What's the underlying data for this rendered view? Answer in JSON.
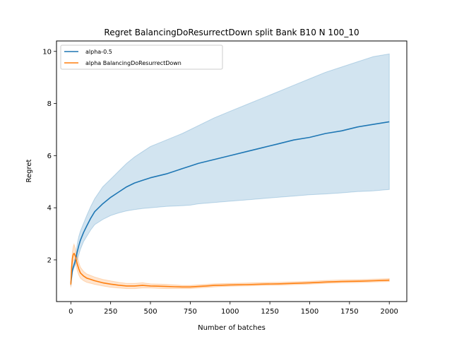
{
  "chart_data": {
    "type": "line",
    "title": "Regret BalancingDoResurrectDown split Bank B10 N 100_10",
    "xlabel": "Number of batches",
    "ylabel": "Regret",
    "xlim": [
      -90,
      2110
    ],
    "ylim": [
      0.4,
      10.4
    ],
    "xticks": [
      0,
      250,
      500,
      750,
      1000,
      1250,
      1500,
      1750,
      2000
    ],
    "yticks": [
      2,
      4,
      6,
      8,
      10
    ],
    "grid": false,
    "legend_position": "top-left",
    "series": [
      {
        "name": "alpha-0.5",
        "color": "#1f77b4",
        "band_color": "#1f77b4",
        "x": [
          0,
          10,
          20,
          30,
          40,
          50,
          60,
          80,
          100,
          125,
          150,
          200,
          250,
          300,
          350,
          400,
          450,
          500,
          600,
          700,
          750,
          800,
          900,
          1000,
          1100,
          1200,
          1300,
          1400,
          1500,
          1600,
          1700,
          1800,
          1900,
          2000
        ],
        "y": [
          1.1,
          1.6,
          1.8,
          2.0,
          2.3,
          2.55,
          2.75,
          3.05,
          3.3,
          3.6,
          3.85,
          4.15,
          4.4,
          4.6,
          4.8,
          4.95,
          5.05,
          5.15,
          5.3,
          5.5,
          5.6,
          5.7,
          5.85,
          6.0,
          6.15,
          6.3,
          6.45,
          6.6,
          6.7,
          6.85,
          6.95,
          7.1,
          7.2,
          7.3
        ],
        "lower": [
          1.0,
          1.5,
          1.7,
          1.85,
          2.0,
          2.2,
          2.4,
          2.7,
          2.9,
          3.15,
          3.35,
          3.55,
          3.7,
          3.8,
          3.88,
          3.93,
          3.97,
          4.0,
          4.05,
          4.08,
          4.1,
          4.15,
          4.2,
          4.25,
          4.3,
          4.35,
          4.4,
          4.45,
          4.5,
          4.53,
          4.57,
          4.62,
          4.65,
          4.7
        ],
        "upper": [
          1.2,
          1.7,
          1.9,
          2.15,
          2.6,
          2.9,
          3.1,
          3.4,
          3.7,
          4.05,
          4.35,
          4.8,
          5.1,
          5.4,
          5.7,
          5.95,
          6.15,
          6.35,
          6.6,
          6.85,
          7.0,
          7.15,
          7.45,
          7.7,
          7.95,
          8.2,
          8.45,
          8.7,
          8.95,
          9.2,
          9.4,
          9.6,
          9.8,
          9.9
        ]
      },
      {
        "name": "alpha BalancingDoResurrectDown",
        "color": "#ff7f0e",
        "band_color": "#ff7f0e",
        "x": [
          0,
          5,
          10,
          15,
          20,
          25,
          30,
          40,
          50,
          60,
          80,
          100,
          125,
          150,
          200,
          250,
          300,
          350,
          400,
          450,
          500,
          550,
          600,
          650,
          700,
          750,
          800,
          850,
          900,
          950,
          1000,
          1100,
          1200,
          1300,
          1400,
          1500,
          1600,
          1700,
          1800,
          1900,
          2000
        ],
        "y": [
          1.05,
          1.7,
          2.05,
          2.2,
          2.25,
          2.2,
          2.1,
          1.85,
          1.65,
          1.5,
          1.38,
          1.3,
          1.25,
          1.2,
          1.12,
          1.07,
          1.03,
          1.0,
          1.0,
          1.02,
          1.0,
          0.99,
          0.98,
          0.97,
          0.96,
          0.96,
          0.98,
          1.0,
          1.02,
          1.03,
          1.04,
          1.05,
          1.07,
          1.08,
          1.1,
          1.12,
          1.15,
          1.17,
          1.18,
          1.2,
          1.22
        ],
        "lower": [
          0.95,
          1.5,
          1.8,
          1.95,
          2.0,
          1.95,
          1.85,
          1.6,
          1.42,
          1.3,
          1.2,
          1.14,
          1.1,
          1.06,
          1.0,
          0.95,
          0.92,
          0.9,
          0.9,
          0.92,
          0.92,
          0.91,
          0.9,
          0.9,
          0.9,
          0.9,
          0.92,
          0.94,
          0.96,
          0.98,
          0.99,
          1.0,
          1.02,
          1.03,
          1.05,
          1.07,
          1.1,
          1.12,
          1.13,
          1.15,
          1.17
        ],
        "upper": [
          1.15,
          1.9,
          2.3,
          2.5,
          2.6,
          2.5,
          2.4,
          2.15,
          1.9,
          1.72,
          1.56,
          1.46,
          1.4,
          1.34,
          1.25,
          1.19,
          1.14,
          1.1,
          1.1,
          1.12,
          1.08,
          1.07,
          1.06,
          1.04,
          1.02,
          1.02,
          1.04,
          1.06,
          1.08,
          1.09,
          1.1,
          1.11,
          1.13,
          1.14,
          1.16,
          1.18,
          1.21,
          1.23,
          1.24,
          1.26,
          1.28
        ]
      }
    ]
  }
}
